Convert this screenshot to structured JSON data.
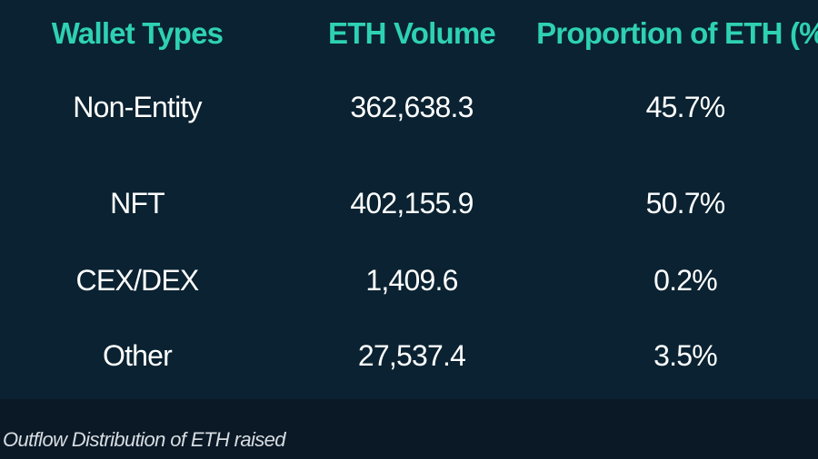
{
  "chart_data": {
    "type": "table",
    "columns": [
      "Wallet Types",
      "ETH Volume",
      "Proportion of ETH (%)"
    ],
    "rows": [
      [
        "Non-Entity",
        "362,638.3",
        "45.7%"
      ],
      [
        "NFT",
        "402,155.9",
        "50.7%"
      ],
      [
        "CEX/DEX",
        "1,409.6",
        "0.2%"
      ],
      [
        "Other",
        "27,537.4",
        "3.5%"
      ]
    ],
    "caption": "Outflow Distribution of ETH raised",
    "colors": {
      "header_text": "#2ed1b3",
      "value_text": "#ffffff",
      "panel_background": "#0a2231",
      "footer_background": "#0b1926"
    }
  }
}
